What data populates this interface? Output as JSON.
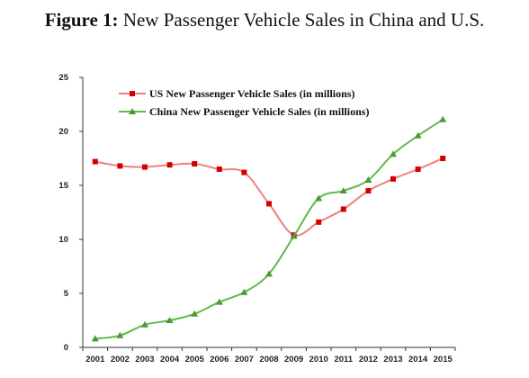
{
  "figure": {
    "label": "Figure 1:",
    "title": "New Passenger Vehicle Sales in China and U.S."
  },
  "chart_data": {
    "type": "line",
    "title": "",
    "xlabel": "",
    "ylabel": "",
    "categories": [
      "2001",
      "2002",
      "2003",
      "2004",
      "2005",
      "2006",
      "2007",
      "2008",
      "2009",
      "2010",
      "2011",
      "2012",
      "2013",
      "2014",
      "2015"
    ],
    "ylim": [
      0,
      25
    ],
    "yticks": [
      0,
      5,
      10,
      15,
      20,
      25
    ],
    "grid": false,
    "legend_position": "top-left",
    "series": [
      {
        "name": "US New Passenger Vehicle Sales (in millions)",
        "color": "#f08080",
        "marker": "square",
        "marker_color": "#d40000",
        "values": [
          17.2,
          16.8,
          16.7,
          16.9,
          17.0,
          16.5,
          16.2,
          13.3,
          10.4,
          11.6,
          12.8,
          14.5,
          15.6,
          16.5,
          17.5
        ]
      },
      {
        "name": "China New Passenger Vehicle Sales (in millions)",
        "color": "#63b84a",
        "marker": "triangle",
        "marker_color": "#4a9a32",
        "values": [
          0.8,
          1.1,
          2.1,
          2.5,
          3.1,
          4.2,
          5.1,
          6.8,
          10.3,
          13.8,
          14.5,
          15.5,
          17.9,
          19.6,
          21.1
        ]
      }
    ]
  }
}
